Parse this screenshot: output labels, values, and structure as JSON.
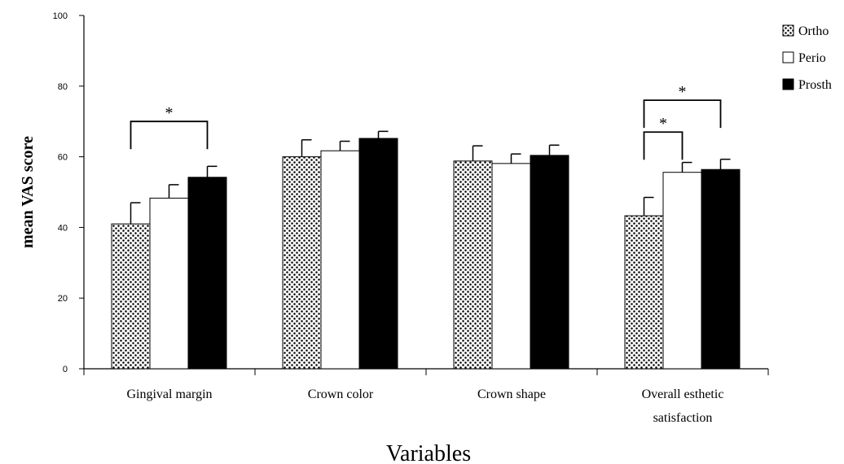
{
  "chart_data": {
    "type": "bar",
    "title": "",
    "xlabel": "Variables",
    "ylabel": "mean VAS score",
    "ylim": [
      0,
      100
    ],
    "yticks": [
      "0",
      "20",
      "40",
      "60",
      "80",
      "100"
    ],
    "grid": false,
    "legend_position": "right",
    "categories": [
      [
        "Gingival margin"
      ],
      [
        "Crown color"
      ],
      [
        "Crown shape"
      ],
      [
        "Overall esthetic",
        "satisfaction"
      ]
    ],
    "series": [
      {
        "name": "Ortho",
        "pattern": "dots",
        "color": "#000000",
        "values": [
          41,
          60,
          58.8,
          43.3
        ],
        "errors": [
          6,
          4.8,
          4.3,
          5.2
        ]
      },
      {
        "name": "Perio",
        "pattern": "white",
        "color": "#ffffff",
        "values": [
          48.3,
          61.7,
          58.1,
          55.6
        ],
        "errors": [
          3.8,
          2.7,
          2.7,
          2.8
        ]
      },
      {
        "name": "Prosth",
        "pattern": "black",
        "color": "#000000",
        "values": [
          54.2,
          65.2,
          60.4,
          56.4
        ],
        "errors": [
          3.1,
          2.0,
          2.9,
          2.9
        ]
      }
    ],
    "significance": [
      {
        "category": 0,
        "from": 0,
        "to": 2,
        "label": "*",
        "level": 70
      },
      {
        "category": 3,
        "from": 0,
        "to": 1,
        "label": "*",
        "level": 67
      },
      {
        "category": 3,
        "from": 0,
        "to": 2,
        "label": "*",
        "level": 76
      }
    ]
  }
}
